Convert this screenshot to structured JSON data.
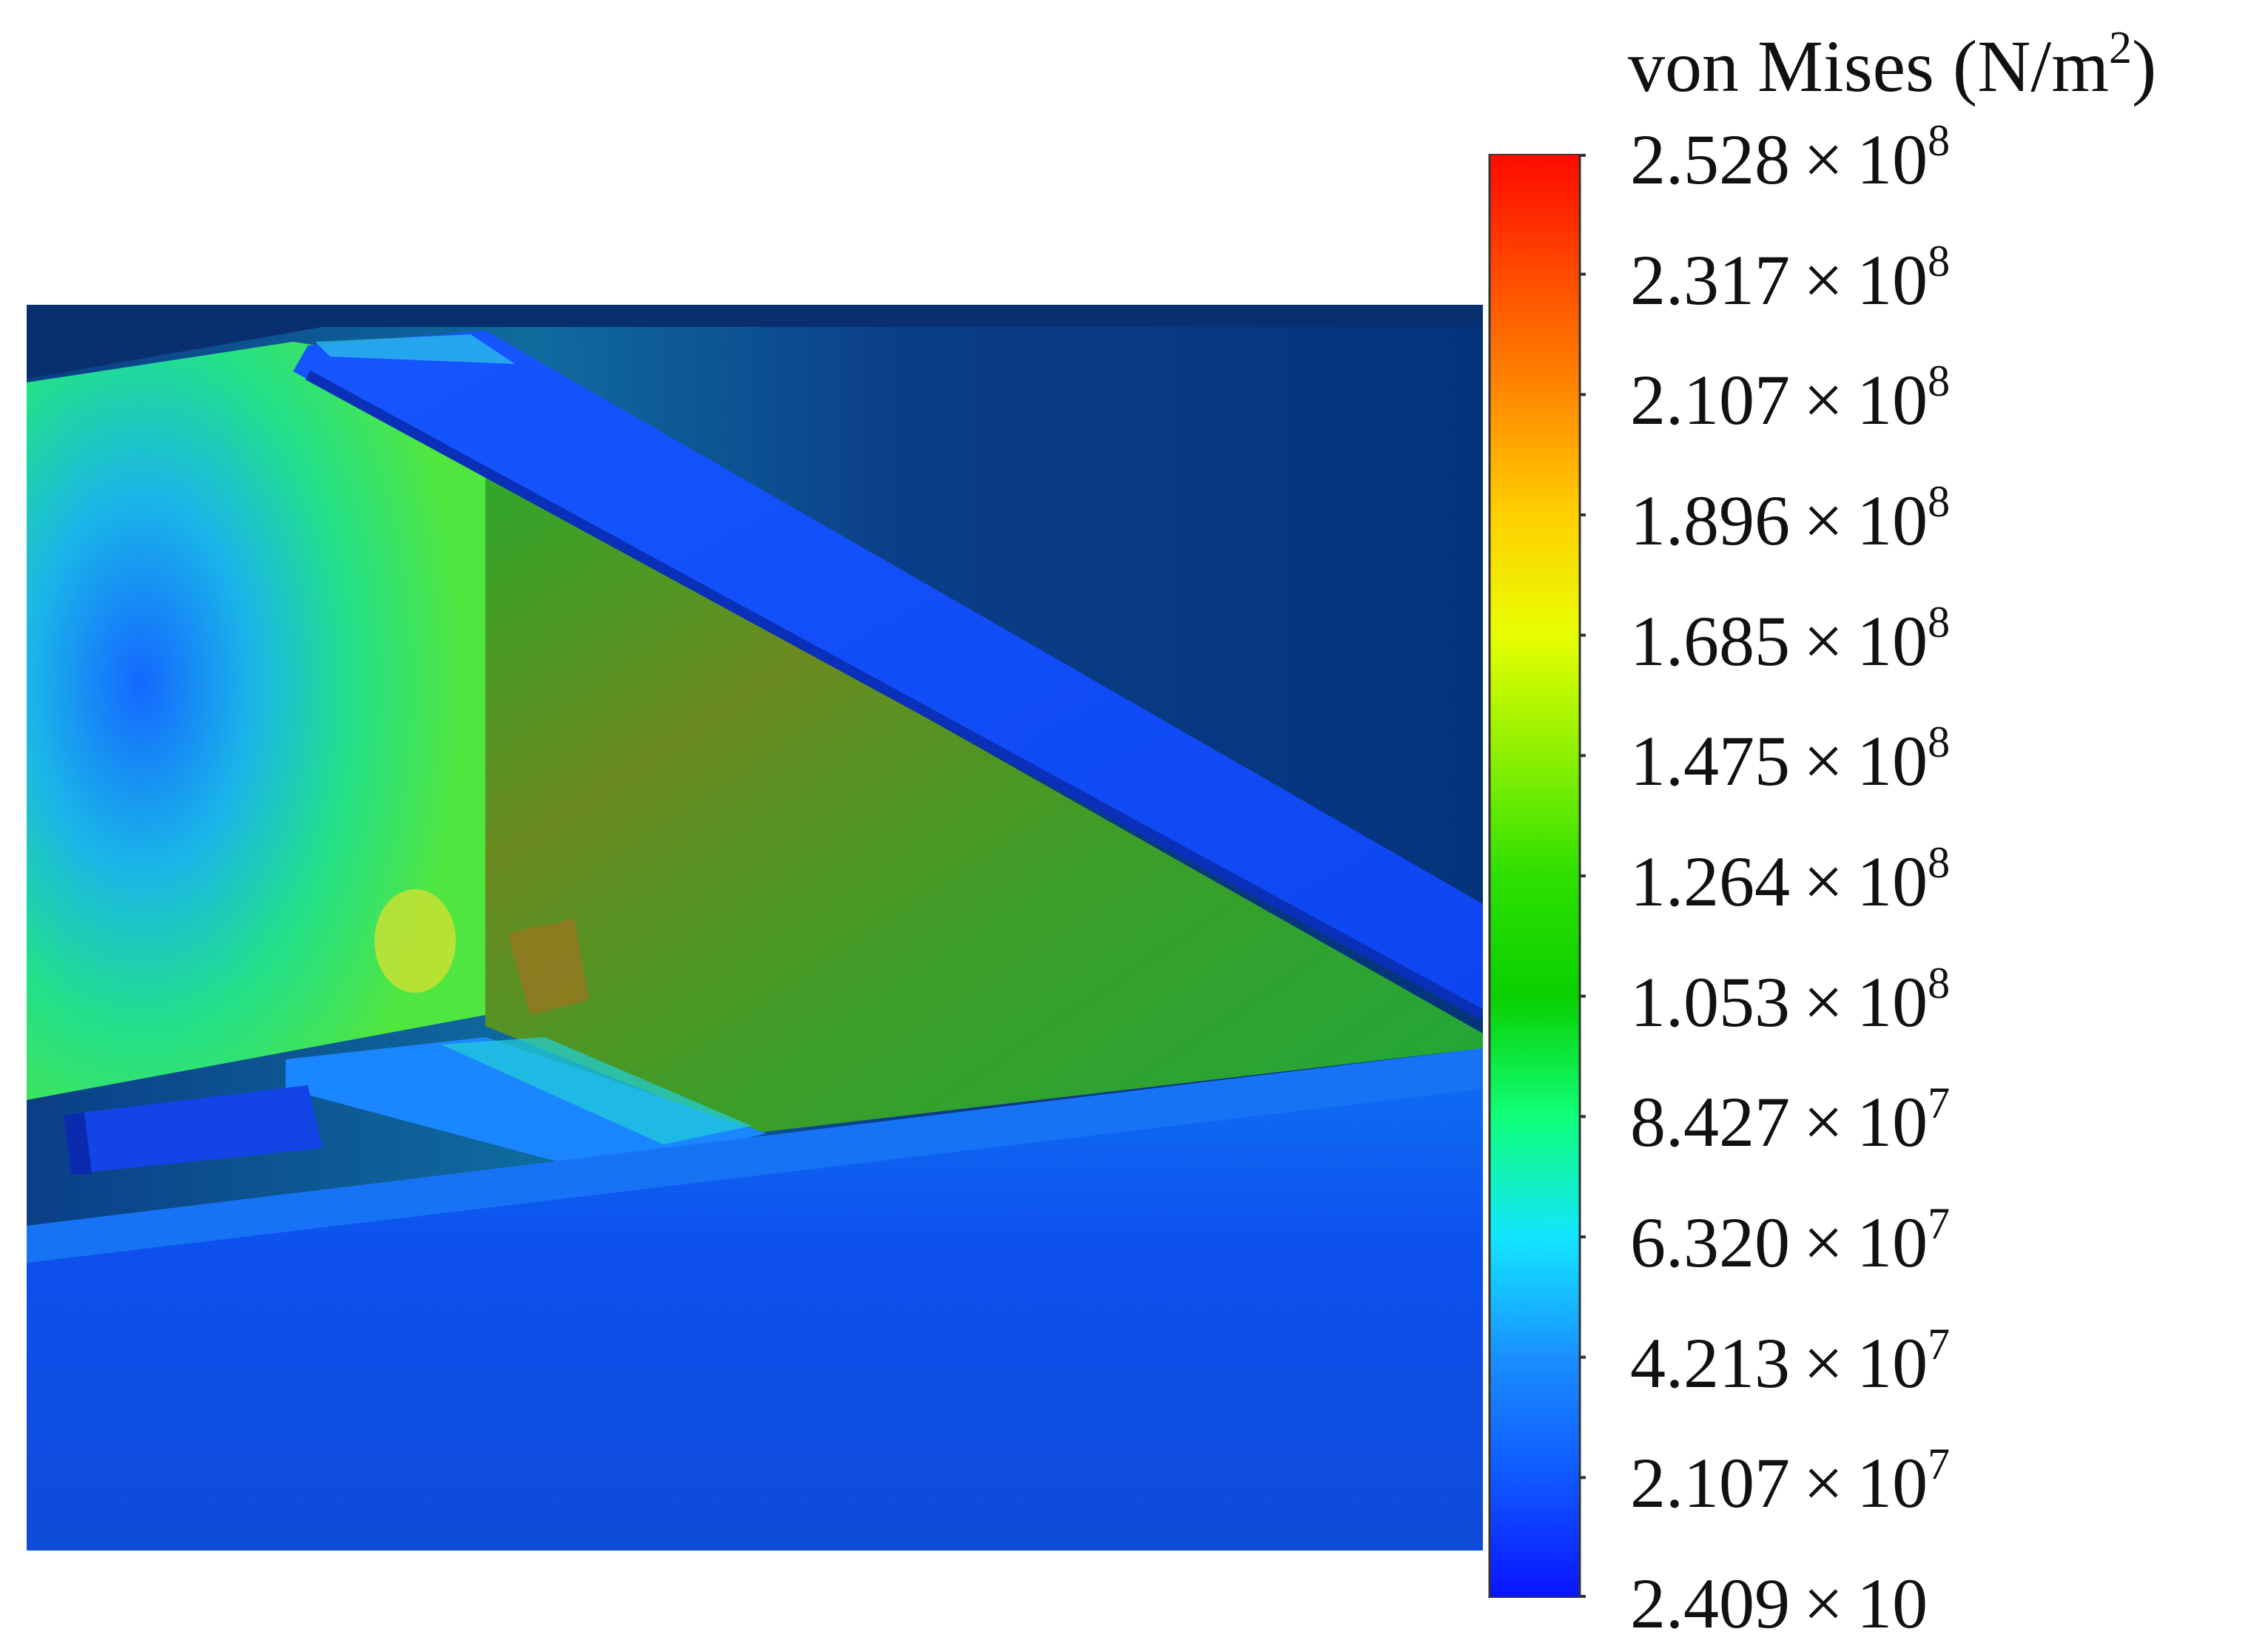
{
  "legend": {
    "title_prefix": "von Mises (N/m",
    "title_exponent": "2",
    "title_suffix": ")",
    "colors": [
      "#0a14ff",
      "#0f58ff",
      "#1a90ff",
      "#12e6ff",
      "#10ff7a",
      "#0ad000",
      "#2ee000",
      "#8cf000",
      "#e8ff00",
      "#ffd000",
      "#ff8a00",
      "#ff4a00",
      "#ff0a00"
    ],
    "ticks": [
      {
        "mantissa": "2.528",
        "times": "×",
        "base": "10",
        "exponent": "8"
      },
      {
        "mantissa": "2.317",
        "times": "×",
        "base": "10",
        "exponent": "8"
      },
      {
        "mantissa": "2.107",
        "times": "×",
        "base": "10",
        "exponent": "8"
      },
      {
        "mantissa": "1.896",
        "times": "×",
        "base": "10",
        "exponent": "8"
      },
      {
        "mantissa": "1.685",
        "times": "×",
        "base": "10",
        "exponent": "8"
      },
      {
        "mantissa": "1.475",
        "times": "×",
        "base": "10",
        "exponent": "8"
      },
      {
        "mantissa": "1.264",
        "times": "×",
        "base": "10",
        "exponent": "8"
      },
      {
        "mantissa": "1.053",
        "times": "×",
        "base": "10",
        "exponent": "8"
      },
      {
        "mantissa": "8.427",
        "times": "×",
        "base": "10",
        "exponent": "7"
      },
      {
        "mantissa": "6.320",
        "times": "×",
        "base": "10",
        "exponent": "7"
      },
      {
        "mantissa": "4.213",
        "times": "×",
        "base": "10",
        "exponent": "7"
      },
      {
        "mantissa": "2.107",
        "times": "×",
        "base": "10",
        "exponent": "7"
      },
      {
        "mantissa": "2.409",
        "times": "×",
        "base": "10",
        "exponent": ""
      }
    ]
  }
}
